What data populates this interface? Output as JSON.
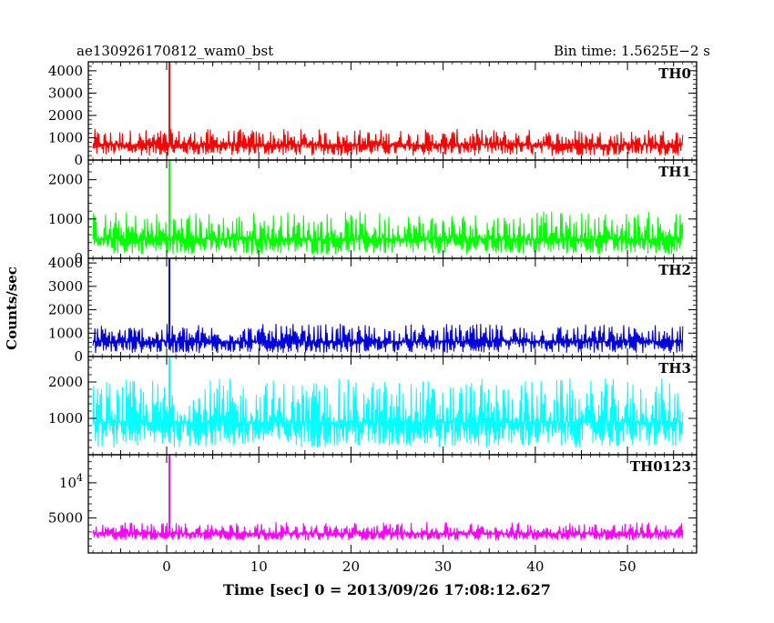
{
  "chart_data": {
    "type": "line",
    "header_left": "ae130926170812_wam0_bst",
    "header_right": "Bin time: 1.5625E−2 s",
    "xlabel": "Time [sec] 0 = 2013/09/26 17:08:12.627",
    "ylabel": "Counts/sec",
    "xlim": [
      -8.5,
      57.5
    ],
    "x_ticks": [
      0,
      10,
      20,
      30,
      40,
      50
    ],
    "x_data_range": [
      -8,
      56
    ],
    "burst_time": 0.3,
    "panels": [
      {
        "name": "TH0",
        "color": "#ff0000",
        "ylim": [
          0,
          4400
        ],
        "y_ticks": [
          0,
          1000,
          2000,
          3000,
          4000
        ],
        "y_tick_labels": [
          "0",
          "1000",
          "2000",
          "3000",
          "4000"
        ],
        "baseline": 700,
        "noise_low": 200,
        "noise_high": 1400,
        "peak": 4400
      },
      {
        "name": "TH1",
        "color": "#00ff00",
        "ylim": [
          0,
          2500
        ],
        "y_ticks": [
          0,
          1000,
          2000
        ],
        "y_tick_labels": [
          "0",
          "1000",
          "2000"
        ],
        "baseline": 500,
        "noise_low": 100,
        "noise_high": 1200,
        "peak": 2500
      },
      {
        "name": "TH2",
        "color": "#0000dd",
        "ylim": [
          0,
          4200
        ],
        "y_ticks": [
          0,
          1000,
          2000,
          3000,
          4000
        ],
        "y_tick_labels": [
          "0",
          "1000",
          "2000",
          "3000",
          "4000"
        ],
        "baseline": 650,
        "noise_low": 150,
        "noise_high": 1400,
        "peak": 4200
      },
      {
        "name": "TH3",
        "color": "#00ffff",
        "ylim": [
          0,
          2700
        ],
        "y_ticks": [
          1000,
          2000
        ],
        "y_tick_labels": [
          "1000",
          "2000"
        ],
        "baseline": 900,
        "noise_low": 200,
        "noise_high": 2100,
        "peak": 2700
      },
      {
        "name": "TH0123",
        "color": "#ff00ff",
        "ylim": [
          0,
          14000
        ],
        "y_ticks": [
          5000,
          10000
        ],
        "y_tick_labels": [
          "5000",
          ""
        ],
        "y_tick_sup": [
          "",
          "10^4"
        ],
        "baseline": 2800,
        "noise_low": 1800,
        "noise_high": 4400,
        "peak": 14000
      }
    ]
  }
}
